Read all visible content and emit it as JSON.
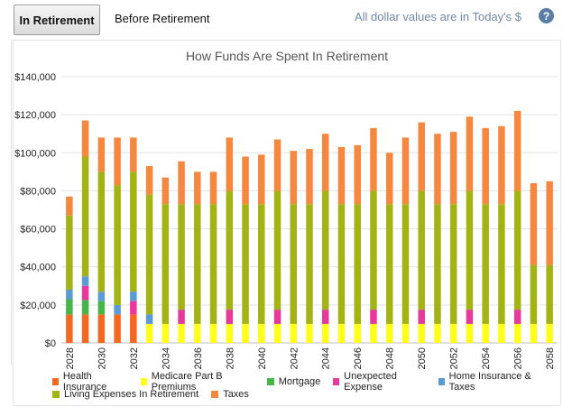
{
  "tabs": {
    "active_label": "In Retirement",
    "inactive_label": "Before Retirement"
  },
  "note": "All dollar values are in Today's $",
  "help_label": "?",
  "chart_data": {
    "type": "bar",
    "stacked": true,
    "title": "How Funds Are Spent In Retirement",
    "xlabel": "",
    "ylabel": "",
    "ylim": [
      0,
      140000
    ],
    "yticks": [
      0,
      20000,
      40000,
      60000,
      80000,
      100000,
      120000,
      140000
    ],
    "ytick_labels": [
      "$0",
      "$20,000",
      "$40,000",
      "$60,000",
      "$80,000",
      "$100,000",
      "$120,000",
      "$140,000"
    ],
    "grid": true,
    "legend_position": "bottom",
    "categories": [
      "2028",
      "2029",
      "2030",
      "2031",
      "2032",
      "2033",
      "2034",
      "2035",
      "2036",
      "2037",
      "2038",
      "2039",
      "2040",
      "2041",
      "2042",
      "2043",
      "2044",
      "2045",
      "2046",
      "2047",
      "2048",
      "2049",
      "2050",
      "2051",
      "2052",
      "2053",
      "2054",
      "2055",
      "2056",
      "2057",
      "2058"
    ],
    "x_tick_labels": [
      "2028",
      "2030",
      "2032",
      "2034",
      "2036",
      "2038",
      "2040",
      "2042",
      "2044",
      "2046",
      "2048",
      "2050",
      "2052",
      "2054",
      "2056",
      "2058"
    ],
    "series": [
      {
        "name": "Health Insurance",
        "color": "#f26a21",
        "values": [
          15000,
          15000,
          15000,
          15000,
          15000,
          0,
          0,
          0,
          0,
          0,
          0,
          0,
          0,
          0,
          0,
          0,
          0,
          0,
          0,
          0,
          0,
          0,
          0,
          0,
          0,
          0,
          0,
          0,
          0,
          0,
          0
        ]
      },
      {
        "name": "Medicare Part B Premiums",
        "color": "#ffff1a",
        "values": [
          0,
          0,
          0,
          0,
          0,
          10000,
          10000,
          10000,
          10000,
          10000,
          10000,
          10000,
          10000,
          10000,
          10000,
          10000,
          10000,
          10000,
          10000,
          10000,
          10000,
          10000,
          10000,
          10000,
          10000,
          10000,
          10000,
          10000,
          10000,
          10000,
          10000
        ]
      },
      {
        "name": "Mortgage",
        "color": "#45b649",
        "values": [
          8000,
          7500,
          7000,
          0,
          0,
          0,
          0,
          0,
          0,
          0,
          0,
          0,
          0,
          0,
          0,
          0,
          0,
          0,
          0,
          0,
          0,
          0,
          0,
          0,
          0,
          0,
          0,
          0,
          0,
          0,
          0
        ]
      },
      {
        "name": "Unexpected Expense",
        "color": "#e6399b",
        "values": [
          0,
          7500,
          0,
          0,
          7000,
          0,
          0,
          7500,
          0,
          0,
          7500,
          0,
          0,
          7500,
          0,
          0,
          7500,
          0,
          0,
          7500,
          0,
          0,
          7500,
          0,
          0,
          7500,
          0,
          0,
          7500,
          0,
          0
        ]
      },
      {
        "name": "Home Insurance & Taxes",
        "color": "#5b9bd5",
        "values": [
          5000,
          5000,
          5000,
          5000,
          5000,
          5000,
          0,
          0,
          0,
          0,
          0,
          0,
          0,
          0,
          0,
          0,
          0,
          0,
          0,
          0,
          0,
          0,
          0,
          0,
          0,
          0,
          0,
          0,
          0,
          0,
          0
        ]
      },
      {
        "name": "Living Expenses In Retirement",
        "color": "#a3b313",
        "values": [
          39000,
          63000,
          63000,
          63000,
          63000,
          63000,
          63000,
          55500,
          63000,
          63000,
          62500,
          63000,
          63000,
          62500,
          63000,
          63000,
          62500,
          63000,
          63000,
          62500,
          63000,
          63000,
          62500,
          63000,
          63000,
          62500,
          63000,
          63000,
          62500,
          31000,
          31000
        ]
      },
      {
        "name": "Taxes",
        "color": "#f5873f",
        "values": [
          10000,
          19000,
          18000,
          25000,
          18000,
          15000,
          14000,
          22500,
          17000,
          17000,
          28000,
          25000,
          26000,
          27000,
          28000,
          29000,
          30000,
          30000,
          31000,
          33000,
          27000,
          35000,
          36000,
          37000,
          38000,
          39000,
          40000,
          41000,
          42000,
          43000,
          44000
        ]
      }
    ]
  }
}
